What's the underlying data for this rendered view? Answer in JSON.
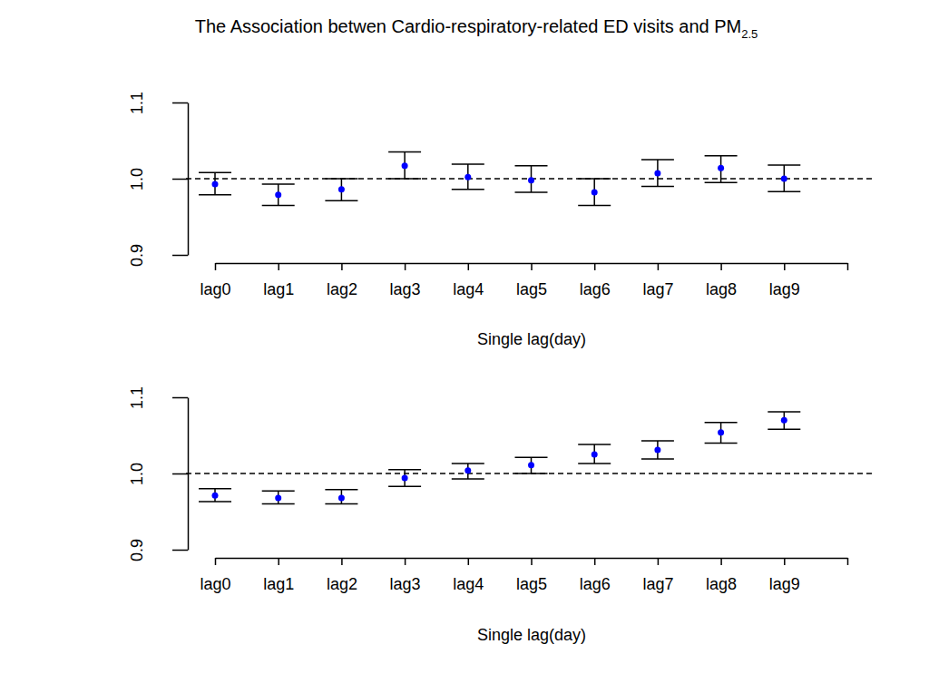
{
  "chart_data": [
    {
      "type": "errorbar",
      "title": "The Association betwen Cardio-respiratory-related ED visits and PM",
      "title_subscript": "2.5",
      "x_label": "Single lag(day)",
      "categories": [
        "lag0",
        "lag1",
        "lag2",
        "lag3",
        "lag4",
        "lag5",
        "lag6",
        "lag7",
        "lag8",
        "lag9",
        null
      ],
      "values": [
        0.993,
        0.979,
        0.986,
        1.017,
        1.002,
        0.998,
        0.982,
        1.007,
        1.014,
        1.0,
        null
      ],
      "lower": [
        0.979,
        0.965,
        0.971,
        1.0,
        0.986,
        0.982,
        0.965,
        0.99,
        0.995,
        0.983,
        null
      ],
      "upper": [
        1.008,
        0.993,
        1.0,
        1.035,
        1.019,
        1.017,
        1.0,
        1.025,
        1.03,
        1.018,
        null
      ],
      "color": "blue",
      "marker": "circle",
      "reference_line": 1,
      "ylim": [
        0.9,
        1.1
      ],
      "yticks": [
        0.9,
        {
          "value": 1,
          "label": "1.0"
        },
        1.1
      ]
    },
    {
      "type": "errorbar",
      "x_label": "Single lag(day)",
      "categories": [
        "lag0",
        "lag1",
        "lag2",
        "lag3",
        "lag4",
        "lag5",
        "lag6",
        "lag7",
        "lag8",
        "lag9",
        null
      ],
      "values": [
        0.971,
        0.968,
        0.968,
        0.994,
        1.004,
        1.011,
        1.025,
        1.031,
        1.054,
        1.07,
        null
      ],
      "lower": [
        0.963,
        0.96,
        0.96,
        0.983,
        0.993,
        1.0,
        1.013,
        1.019,
        1.04,
        1.058,
        null
      ],
      "upper": [
        0.98,
        0.977,
        0.979,
        1.005,
        1.013,
        1.021,
        1.038,
        1.043,
        1.067,
        1.081,
        null
      ],
      "color": "blue",
      "marker": "circle",
      "reference_line": 1,
      "ylim": [
        0.9,
        1.1
      ],
      "yticks": [
        0.9,
        {
          "value": 1,
          "label": "1.0"
        },
        1.1
      ]
    }
  ]
}
